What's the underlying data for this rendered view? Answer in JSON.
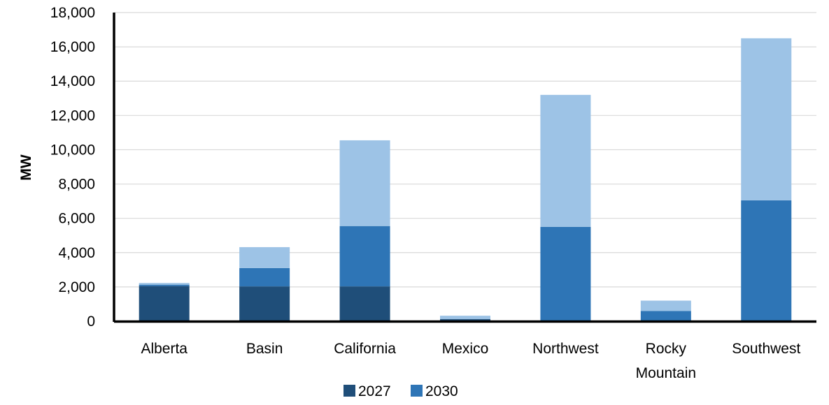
{
  "chart_data": {
    "type": "bar",
    "stacked": true,
    "ylabel": "MW",
    "xlabel": "",
    "ylim": [
      0,
      18000
    ],
    "y_ticks": [
      "0",
      "2,000",
      "4,000",
      "6,000",
      "8,000",
      "10,000",
      "12,000",
      "14,000",
      "16,000",
      "18,000"
    ],
    "categories": [
      [
        "Alberta"
      ],
      [
        "Basin"
      ],
      [
        "California"
      ],
      [
        "Mexico"
      ],
      [
        "Northwest"
      ],
      [
        "Rocky",
        "Mountain"
      ],
      [
        "Southwest"
      ]
    ],
    "series": [
      {
        "name": "2027",
        "color": "#1f4e79",
        "values": [
          2050,
          2030,
          2030,
          120,
          0,
          0,
          0
        ]
      },
      {
        "name": "2030",
        "color": "#2e75b6",
        "values": [
          80,
          1070,
          3520,
          0,
          5500,
          600,
          7050
        ]
      },
      {
        "name": "",
        "color": "#9dc3e6",
        "values": [
          100,
          1220,
          5000,
          200,
          7700,
          600,
          9450
        ]
      }
    ],
    "grid": true,
    "legend_position": "bottom"
  }
}
